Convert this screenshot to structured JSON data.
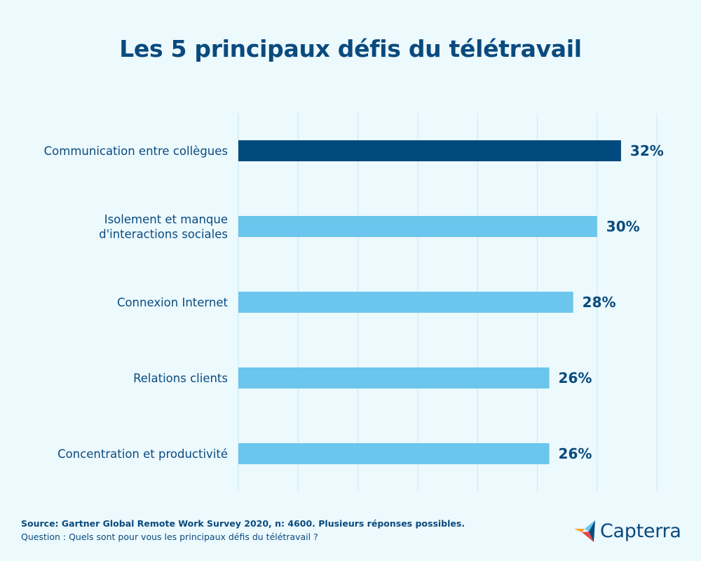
{
  "chart_data": {
    "type": "bar",
    "orientation": "horizontal",
    "title": "Les 5 principaux défis du télétravail",
    "categories": [
      [
        "Communication entre collègues"
      ],
      [
        "Isolement et manque",
        "d'interactions sociales"
      ],
      [
        "Connexion Internet"
      ],
      [
        "Relations clients"
      ],
      [
        "Concentration et productivité"
      ]
    ],
    "values": [
      32,
      30,
      28,
      26,
      26
    ],
    "value_labels": [
      "32%",
      "30%",
      "28%",
      "26%",
      "26%"
    ],
    "xlim": [
      0,
      35
    ],
    "gridline_step": 5,
    "highlight_index": 0,
    "colors": {
      "highlight": "#024a7d",
      "bar": "#6bc5ed",
      "label": "#0a4a7e",
      "grid": "#c9e9f4"
    }
  },
  "footer": {
    "source": "Source: Gartner Global Remote Work Survey 2020, n: 4600. Plusieurs réponses possibles.",
    "question": "Question : Quels sont pour vous les principaux défis du télétravail ?"
  },
  "logo": {
    "text": "Capterra",
    "icon": "capterra-arrow-icon",
    "colors": [
      "#ff9d28",
      "#68c5ed",
      "#044d80",
      "#e54747"
    ]
  }
}
